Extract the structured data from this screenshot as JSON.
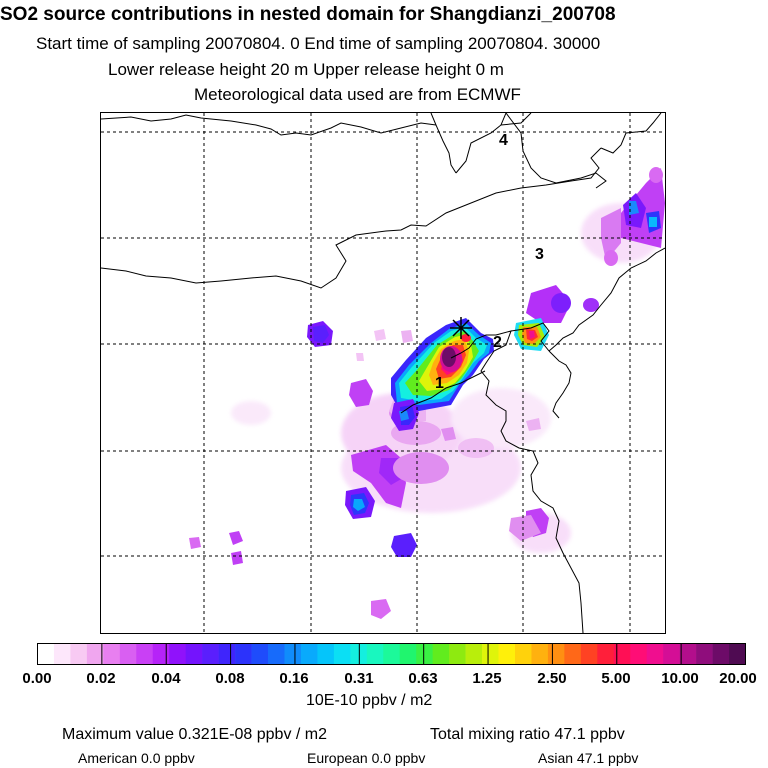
{
  "header": {
    "title": "SO2 source contributions in nested domain for Shangdianzi_200708",
    "line2": "Start time of sampling 20070804.      0      End time of sampling 20070804. 30000",
    "line3": "Lower release height   20 m          Upper release height    0 m",
    "line4": "Meteorological data used are from ECMWF"
  },
  "map": {
    "region_labels": [
      "1",
      "2",
      "3",
      "4"
    ],
    "site_marker": "x-cross-icon",
    "colors": {
      "coast": "#000000",
      "grid": "#000000"
    }
  },
  "colorbar": {
    "tick_labels": [
      "0.00",
      "0.02",
      "0.04",
      "0.08",
      "0.16",
      "0.31",
      "0.63",
      "1.25",
      "2.50",
      "5.00",
      "10.00",
      "20.00"
    ],
    "colors": [
      "#ffffff",
      "#fde7fb",
      "#f8caf3",
      "#f0a6ef",
      "#e87ff0",
      "#d95ff2",
      "#c940f5",
      "#b623f8",
      "#9012fb",
      "#7414fd",
      "#5a1ffd",
      "#3f25fc",
      "#2c33fb",
      "#1f4cfb",
      "#176bfb",
      "#108cfb",
      "#09aafc",
      "#05c5fa",
      "#0bdff4",
      "#14efe0",
      "#19f7bf",
      "#1cf99a",
      "#20f56e",
      "#3af044",
      "#61ec1e",
      "#8eea10",
      "#b9ee0b",
      "#dff40a",
      "#fff00a",
      "#ffd20c",
      "#ffb10f",
      "#ff8f12",
      "#ff6818",
      "#ff4223",
      "#ff1f3a",
      "#ff0f55",
      "#ff0d76",
      "#f00e8f",
      "#d40e96",
      "#b30e8c",
      "#8f0d7c",
      "#6d0b68",
      "#4f0b52"
    ],
    "unit": "10E-10 ppbv / m2"
  },
  "footer": {
    "max_label": "Maximum value  0.321E-08 ppbv / m2",
    "total_label": "Total mixing ratio      47.1 ppbv",
    "american": "American        0.0 ppbv",
    "european": "European        0.0 ppbv",
    "asian": "Asian     47.1 ppbv"
  }
}
